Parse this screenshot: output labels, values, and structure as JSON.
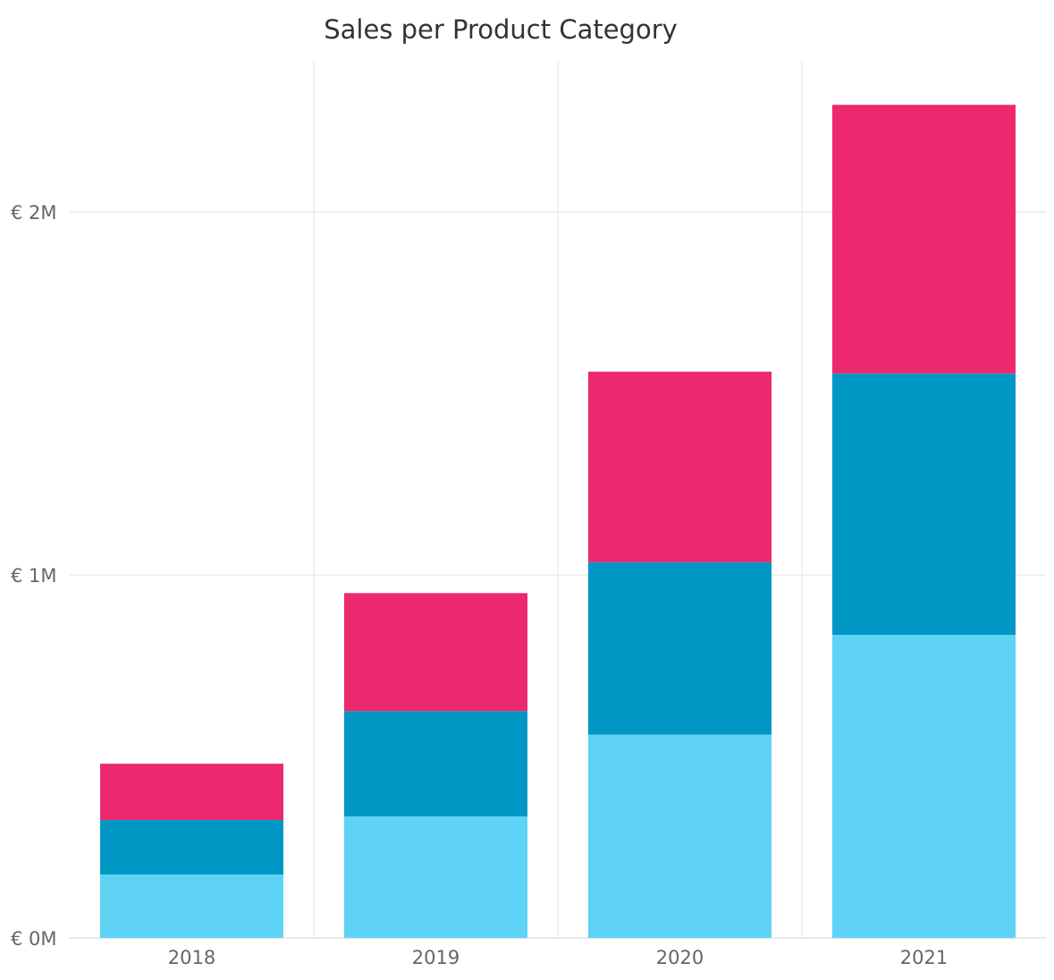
{
  "chart_data": {
    "type": "bar",
    "stacked": true,
    "title": "Sales per Product Category",
    "categories": [
      "2018",
      "2019",
      "2020",
      "2021"
    ],
    "series": [
      {
        "values": [
          175000,
          335000,
          560000,
          835000
        ],
        "color": "#5ED3F6"
      },
      {
        "values": [
          150000,
          290000,
          475000,
          720000
        ],
        "color": "#0097C4"
      },
      {
        "values": [
          155000,
          325000,
          525000,
          740000
        ],
        "color": "#EC296E"
      }
    ],
    "ylim": [
      0,
      2300000
    ],
    "yticks": [
      {
        "value": 0,
        "label": "€ 0M"
      },
      {
        "value": 1000000,
        "label": "€ 1M"
      },
      {
        "value": 2000000,
        "label": "€ 2M"
      }
    ],
    "grid": true,
    "legend": "none",
    "xlabel": "",
    "ylabel": ""
  }
}
